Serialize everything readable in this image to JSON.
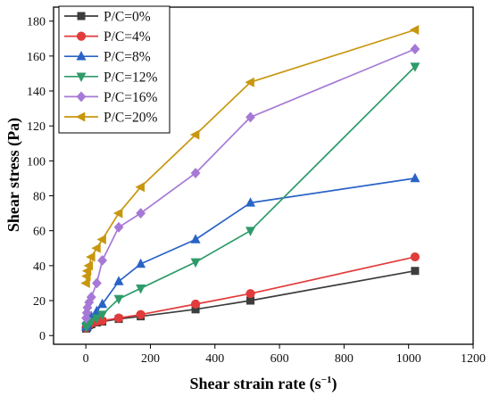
{
  "chart_data": {
    "type": "line",
    "xlabel": "Shear strain rate (s",
    "xlabel_sup": "−1",
    "xlabel_close": ")",
    "ylabel": "Shear stress (Pa)",
    "xlim": [
      -100,
      1200
    ],
    "ylim": [
      -5,
      188
    ],
    "xticks": [
      0,
      200,
      400,
      600,
      800,
      1000,
      1200
    ],
    "yticks": [
      0,
      20,
      40,
      60,
      80,
      100,
      120,
      140,
      160,
      180
    ],
    "grid": false,
    "legend_position": "top-left",
    "series": [
      {
        "name": "P/C=0%",
        "color": "#3d3d3d",
        "marker": "square",
        "x": [
          1,
          3,
          5,
          10,
          17,
          34,
          51,
          102,
          170,
          340,
          510,
          1020
        ],
        "y": [
          4,
          4.5,
          5,
          6,
          6.5,
          7.5,
          8,
          9.5,
          11,
          15,
          20,
          37
        ]
      },
      {
        "name": "P/C=4%",
        "color": "#e23b3b",
        "marker": "circle",
        "x": [
          1,
          3,
          5,
          10,
          17,
          34,
          51,
          102,
          170,
          340,
          510,
          1020
        ],
        "y": [
          4.5,
          5,
          5.5,
          6.5,
          7,
          8,
          8.5,
          10,
          12,
          18,
          24,
          45
        ]
      },
      {
        "name": "P/C=8%",
        "color": "#2a63c6",
        "marker": "triangle-up",
        "x": [
          1,
          3,
          5,
          10,
          17,
          34,
          51,
          102,
          170,
          340,
          510,
          1020
        ],
        "y": [
          5,
          6,
          7,
          9,
          11,
          14,
          18,
          31,
          41,
          55,
          76,
          90
        ]
      },
      {
        "name": "P/C=12%",
        "color": "#2f9b6a",
        "marker": "triangle-down",
        "x": [
          1,
          3,
          5,
          10,
          17,
          34,
          51,
          102,
          170,
          340,
          510,
          1020
        ],
        "y": [
          5,
          5.5,
          6,
          7,
          8,
          10,
          12,
          21,
          27,
          42,
          60,
          154
        ]
      },
      {
        "name": "P/C=16%",
        "color": "#a679d6",
        "marker": "diamond",
        "x": [
          1,
          3,
          5,
          10,
          17,
          34,
          51,
          102,
          170,
          340,
          510,
          1020
        ],
        "y": [
          10,
          13,
          16,
          19,
          22,
          30,
          43,
          62,
          70,
          93,
          125,
          164
        ]
      },
      {
        "name": "P/C=20%",
        "color": "#c8960f",
        "marker": "triangle-left",
        "x": [
          1,
          3,
          5,
          10,
          17,
          34,
          51,
          102,
          170,
          340,
          510,
          1020
        ],
        "y": [
          30,
          34,
          37,
          40,
          45,
          50,
          55,
          70,
          85,
          115,
          145,
          175
        ]
      }
    ]
  }
}
